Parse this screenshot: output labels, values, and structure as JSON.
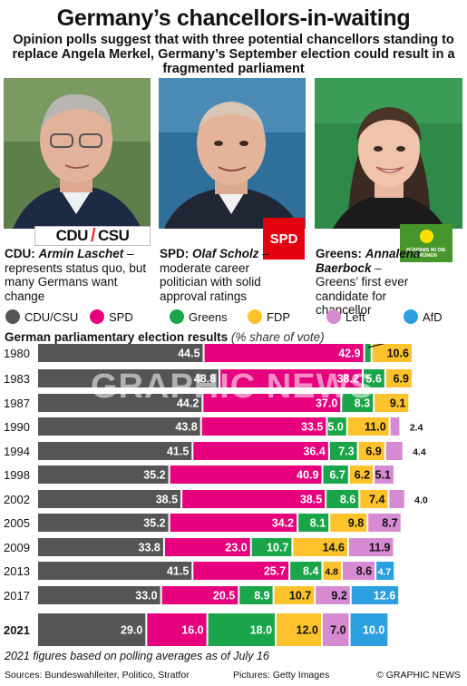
{
  "header": {
    "title": "Germany’s chancellors-in-waiting",
    "subtitle": "Opinion polls suggest that with three potential chancellors standing to replace Angela Merkel, Germany’s September election could result in a fragmented parliament"
  },
  "candidates": [
    {
      "party": "CDU:",
      "name": "Armin Laschet",
      "dash": " –",
      "desc": "represents status quo, but many Germans want change",
      "logo": "CDU ⁄ CSU"
    },
    {
      "party": "SPD:",
      "name": "Olaf Scholz",
      "dash": " –",
      "desc": "moderate career politician with solid approval ratings",
      "logo": "SPD"
    },
    {
      "party": "Greens:",
      "name": "Annalena Baerbock",
      "dash": " –",
      "desc": "Greens’ first ever candidate for chancellor",
      "logo": "BÜNDNIS 90 DIE GRÜNEN"
    }
  ],
  "logos": {
    "cdu_left": "CDU",
    "cdu_right": "CSU",
    "spd": "SPD",
    "greens": "BÜNDNIS 90 DIE GRÜNEN"
  },
  "legend": [
    {
      "label": "CDU/CSU",
      "color": "#555555"
    },
    {
      "label": "SPD",
      "color": "#e6007e"
    },
    {
      "label": "Greens",
      "color": "#1aa54a"
    },
    {
      "label": "FDP",
      "color": "#fdc22c"
    },
    {
      "label": "Left",
      "color": "#d58ad1"
    },
    {
      "label": "AfD",
      "color": "#2b9fe0"
    }
  ],
  "chart_heading": {
    "main": "German parliamentary election results",
    "sub": "(% share of vote)"
  },
  "chart_data": {
    "type": "bar",
    "stacked": true,
    "orientation": "horizontal",
    "categories": [
      "1980",
      "1983",
      "1987",
      "1990",
      "1994",
      "1998",
      "2002",
      "2005",
      "2009",
      "2013",
      "2017",
      "2021"
    ],
    "series": [
      {
        "name": "CDU/CSU",
        "color": "#555555",
        "values": [
          44.5,
          48.8,
          44.2,
          43.8,
          41.5,
          35.2,
          38.5,
          35.2,
          33.8,
          41.5,
          33.0,
          29.0
        ]
      },
      {
        "name": "SPD",
        "color": "#e6007e",
        "values": [
          42.9,
          38.2,
          37.0,
          33.5,
          36.4,
          40.9,
          38.5,
          34.2,
          23.0,
          25.7,
          20.5,
          16.0
        ]
      },
      {
        "name": "Greens",
        "color": "#1aa54a",
        "values": [
          1.5,
          5.6,
          8.3,
          5.0,
          7.3,
          6.7,
          8.6,
          8.1,
          10.7,
          8.4,
          8.9,
          18.0
        ]
      },
      {
        "name": "FDP",
        "color": "#fdc22c",
        "values": [
          10.6,
          6.9,
          9.1,
          11.0,
          6.9,
          6.2,
          7.4,
          9.8,
          14.6,
          4.8,
          10.7,
          12.0
        ]
      },
      {
        "name": "Left",
        "color": "#d58ad1",
        "values": [
          null,
          null,
          null,
          2.4,
          4.4,
          5.1,
          4.0,
          8.7,
          11.9,
          8.6,
          9.2,
          7.0
        ]
      },
      {
        "name": "AfD",
        "color": "#2b9fe0",
        "values": [
          null,
          null,
          null,
          null,
          null,
          null,
          null,
          null,
          null,
          4.7,
          12.6,
          10.0
        ]
      }
    ],
    "annotation_1980_greens": "1.5",
    "highlight_row": "2021"
  },
  "watermark": "GRAPHIC NEWS",
  "footnote": "2021 figures based on polling averages as of July 16",
  "footer": {
    "sources": "Sources: Bundeswahlleiter, Politico, Stratfor",
    "pictures": "Pictures: Getty Images",
    "brand": "© GRAPHIC NEWS"
  }
}
